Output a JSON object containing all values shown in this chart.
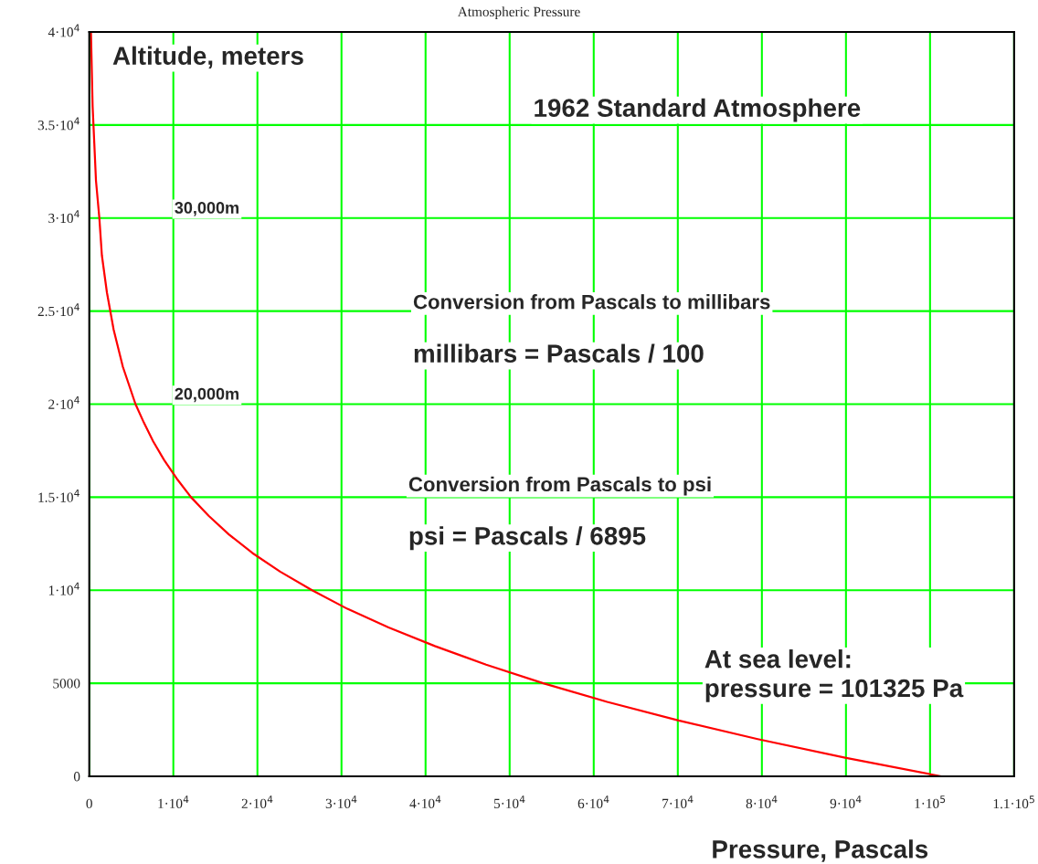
{
  "chart_data": {
    "type": "line",
    "title": "Atmospheric Pressure",
    "xlabel": "Pressure, Pascals",
    "ylabel": "Altitude, meters",
    "series": [
      {
        "color": "#ff0000",
        "x": [
          101325,
          89900,
          79500,
          70100,
          61600,
          54000,
          47200,
          41100,
          35600,
          30700,
          26500,
          22700,
          19400,
          16600,
          14200,
          12100,
          10400,
          8900,
          7600,
          6500,
          5500,
          4000,
          2900,
          2100,
          1500,
          1200,
          800,
          600,
          400,
          300,
          200
        ],
        "values": [
          0,
          1000,
          2000,
          3000,
          4000,
          5000,
          6000,
          7000,
          8000,
          9000,
          10000,
          11000,
          12000,
          13000,
          14000,
          15000,
          16000,
          17000,
          18000,
          19000,
          20000,
          22000,
          24000,
          26000,
          28000,
          30000,
          32000,
          34000,
          36000,
          38000,
          40000
        ]
      }
    ],
    "xlim": [
      0,
      110000
    ],
    "ylim": [
      0,
      40000
    ],
    "xticks": [
      0,
      {
        "value": 10000,
        "label": "1·10$^{4}$"
      },
      {
        "value": 20000,
        "label": "2·10$^{4}$"
      },
      {
        "value": 30000,
        "label": "3·10$^{4}$"
      },
      {
        "value": 40000,
        "label": "4·10$^{4}$"
      },
      {
        "value": 50000,
        "label": "5·10$^{4}$"
      },
      {
        "value": 60000,
        "label": "6·10$^{4}$"
      },
      {
        "value": 70000,
        "label": "7·10$^{4}$"
      },
      {
        "value": 80000,
        "label": "8·10$^{4}$"
      },
      {
        "value": 90000,
        "label": "9·10$^{4}$"
      },
      {
        "value": 100000,
        "label": "1·10$^{5}$"
      },
      {
        "value": 110000,
        "label": "1.1·10$^{5}$"
      }
    ],
    "yticks": [
      0,
      5000,
      {
        "value": 10000,
        "label": "1·10$^{4}$"
      },
      {
        "value": 15000,
        "label": "1.5·10$^{4}$"
      },
      {
        "value": 20000,
        "label": "2·10$^{4}$"
      },
      {
        "value": 25000,
        "label": "2.5·10$^{4}$"
      },
      {
        "value": 30000,
        "label": "3·10$^{4}$"
      },
      {
        "value": 35000,
        "label": "3.5·10$^{4}$"
      },
      {
        "value": 40000,
        "label": "4·10$^{4}$"
      }
    ],
    "grid": true,
    "line_style": "solid",
    "marker": "none",
    "annotations": [
      "1962 Standard Atmosphere",
      "30,000m",
      "20,000m",
      "Conversion from Pascals to millibars",
      "millibars = Pascals / 100",
      "Conversion from Pascals to psi",
      "psi = Pascals / 6895",
      "At sea level:\npressure = 101325 Pa"
    ]
  }
}
